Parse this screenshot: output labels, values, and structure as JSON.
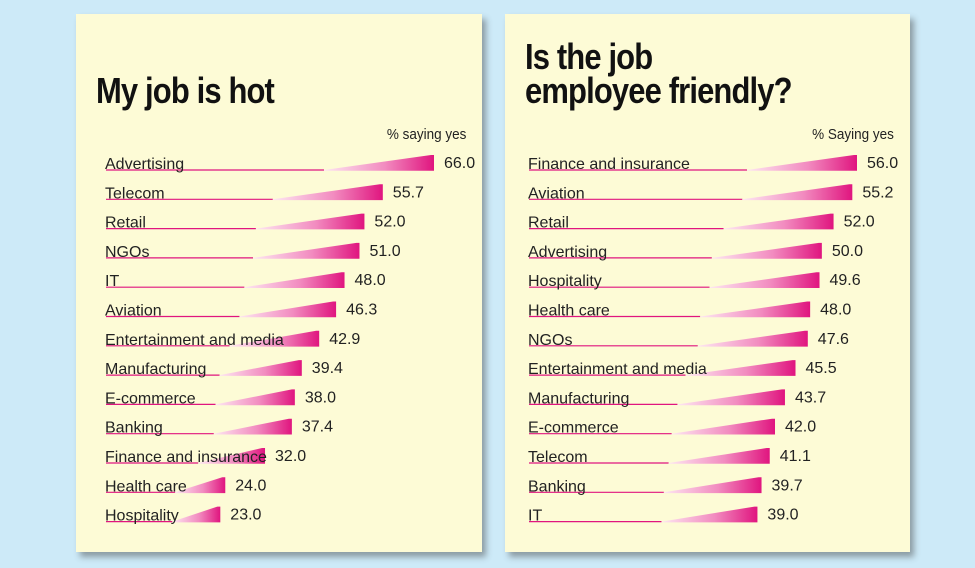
{
  "colors": {
    "background": "#cdeaf8",
    "panel": "#fdfbd6",
    "bar": "#e0157f",
    "bar_light": "#fde6f1"
  },
  "chart_data": [
    {
      "type": "bar",
      "title": "My job is hot",
      "unit_label": "% saying yes",
      "categories": [
        "Advertising",
        "Telecom",
        "Retail",
        "NGOs",
        "IT",
        "Aviation",
        "Entertainment and media",
        "Manufacturing",
        "E-commerce",
        "Banking",
        "Finance and insurance",
        "Health care",
        "Hospitality"
      ],
      "values": [
        66.0,
        55.7,
        52.0,
        51.0,
        48.0,
        46.3,
        42.9,
        39.4,
        38.0,
        37.4,
        32.0,
        24.0,
        23.0
      ],
      "value_labels": [
        "66.0",
        "55.7",
        "52.0",
        "51.0",
        "48.0",
        "46.3",
        "42.9",
        "39.4",
        "38.0",
        "37.4",
        "32.0",
        "24.0",
        "23.0"
      ],
      "orientation": "horizontal",
      "grid": false
    },
    {
      "type": "bar",
      "title": "Is the job employee friendly?",
      "title_lines": [
        "Is the job",
        "employee friendly?"
      ],
      "unit_label": "% Saying yes",
      "categories": [
        "Finance and insurance",
        "Aviation",
        "Retail",
        "Advertising",
        "Hospitality",
        "Health care",
        "NGOs",
        "Entertainment and media",
        "Manufacturing",
        "E-commerce",
        "Telecom",
        "Banking",
        "IT"
      ],
      "values": [
        56.0,
        55.2,
        52.0,
        50.0,
        49.6,
        48.0,
        47.6,
        45.5,
        43.7,
        42.0,
        41.1,
        39.7,
        39.0
      ],
      "value_labels": [
        "56.0",
        "55.2",
        "52.0",
        "50.0",
        "49.6",
        "48.0",
        "47.6",
        "45.5",
        "43.7",
        "42.0",
        "41.1",
        "39.7",
        "39.0"
      ],
      "orientation": "horizontal",
      "grid": false
    }
  ]
}
